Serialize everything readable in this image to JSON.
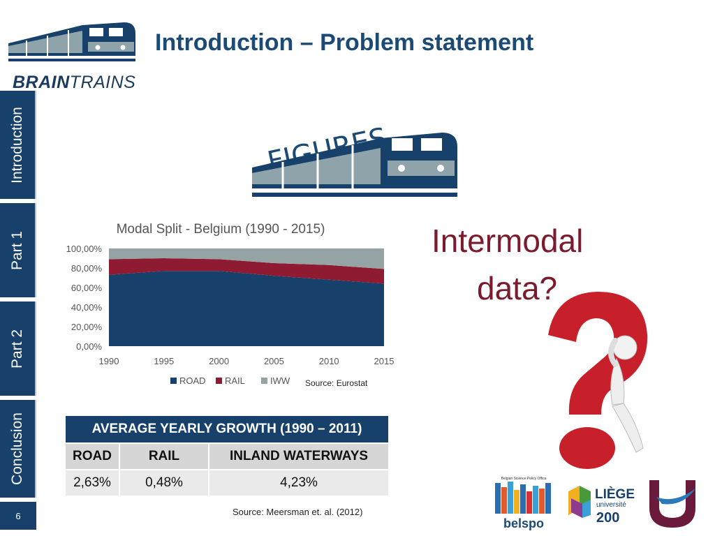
{
  "header": {
    "title": "Introduction – Problem statement",
    "logo_text_bold": "BRAIN",
    "logo_text_thin": "TRAINS"
  },
  "sidebar": {
    "tabs": [
      "Introduction",
      "Part 1",
      "Part 2",
      "Conclusion"
    ],
    "page_number": "6"
  },
  "figures_label": "FIGURES",
  "chart_data": {
    "type": "area",
    "title": "Modal Split - Belgium (1990 - 2015)",
    "x": [
      1990,
      1995,
      2000,
      2005,
      2010,
      2015
    ],
    "ylim": [
      0,
      100
    ],
    "y_ticks": [
      "0,00%",
      "20,00%",
      "40,00%",
      "60,00%",
      "80,00%",
      "100,00%"
    ],
    "x_ticks": [
      "1990",
      "1995",
      "2000",
      "2005",
      "2010",
      "2015"
    ],
    "stacked": true,
    "series": [
      {
        "name": "ROAD",
        "color": "#17406b",
        "values": [
          73,
          77,
          77,
          72,
          68,
          64
        ]
      },
      {
        "name": "RAIL",
        "color": "#8e1b32",
        "values": [
          16,
          13,
          12,
          13,
          15,
          15
        ]
      },
      {
        "name": "IWW",
        "color": "#95a3a5",
        "values": [
          11,
          10,
          11,
          15,
          17,
          21
        ]
      }
    ],
    "legend_position": "bottom",
    "grid": false
  },
  "chart_source": "Source: Eurostat",
  "question": {
    "line1": "Intermodal",
    "line2": "data?"
  },
  "table": {
    "title": "AVERAGE YEARLY GROWTH (1990 – 2011)",
    "headers": [
      "ROAD",
      "RAIL",
      "INLAND WATERWAYS"
    ],
    "values": [
      "2,63%",
      "0,48%",
      "4,23%"
    ]
  },
  "table_source": "Source: Meersman et. al. (2012)",
  "partners": {
    "belspo_caption": "Belgian Science Policy Office",
    "belspo_name": "belspo",
    "liege_name": "LIÈGE",
    "liege_sub": "université",
    "liege_num": "200"
  }
}
